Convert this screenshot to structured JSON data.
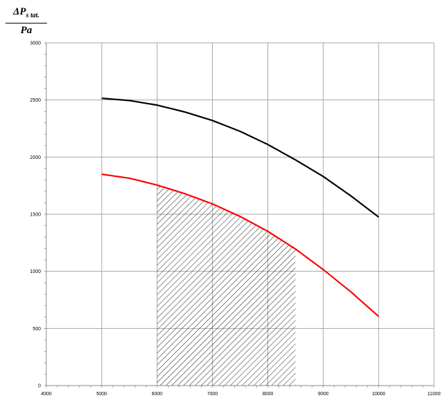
{
  "chart_data": {
    "type": "line",
    "ylabel_num": "ΔP",
    "ylabel_sub": "s tat.",
    "ylabel_den": "Pa",
    "xlim": [
      4000,
      11000
    ],
    "ylim": [
      0,
      3000
    ],
    "xticks": [
      "4000",
      "5000",
      "6000",
      "7000",
      "8000",
      "9000",
      "10000",
      "11000"
    ],
    "yticks": [
      "0",
      "500",
      "1000",
      "1500",
      "2000",
      "2500",
      "3000"
    ],
    "grid": true,
    "series": [
      {
        "color": "#000000",
        "x": [
          5000,
          5500,
          6000,
          6500,
          7000,
          7500,
          8000,
          8500,
          9000,
          9500,
          10000
        ],
        "y": [
          2515,
          2495,
          2455,
          2395,
          2320,
          2225,
          2110,
          1975,
          1830,
          1660,
          1475
        ]
      },
      {
        "color": "#ff0000",
        "x": [
          5000,
          5500,
          6000,
          6500,
          7000,
          7500,
          8000,
          8500,
          9000,
          9500,
          10000
        ],
        "y": [
          1850,
          1815,
          1755,
          1680,
          1590,
          1480,
          1350,
          1195,
          1015,
          820,
          605
        ]
      }
    ],
    "hatched_region": {
      "x_from": 6000,
      "x_to": 8500,
      "bound_series": 1
    }
  }
}
